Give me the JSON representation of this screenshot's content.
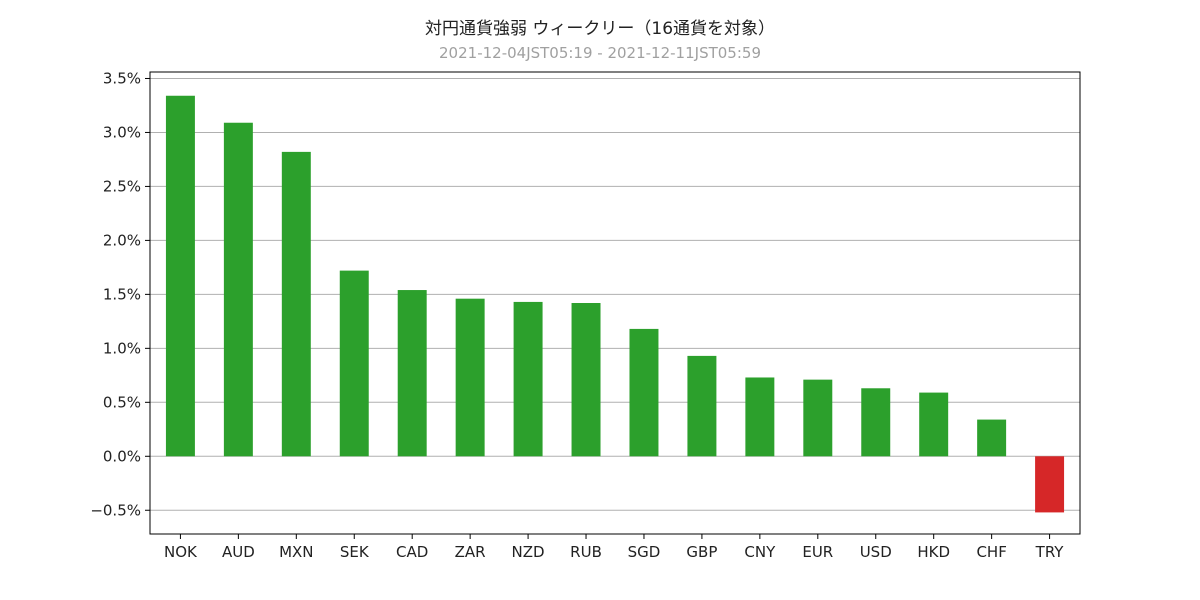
{
  "chart_data": {
    "type": "bar",
    "title": "対円通貨強弱 ウィークリー（16通貨を対象）",
    "subtitle": "2021-12-04JST05:19 - 2021-12-11JST05:59",
    "xlabel": "",
    "ylabel": "",
    "categories": [
      "NOK",
      "AUD",
      "MXN",
      "SEK",
      "CAD",
      "ZAR",
      "NZD",
      "RUB",
      "SGD",
      "GBP",
      "CNY",
      "EUR",
      "USD",
      "HKD",
      "CHF",
      "TRY"
    ],
    "values": [
      3.34,
      3.09,
      2.82,
      1.72,
      1.54,
      1.46,
      1.43,
      1.42,
      1.18,
      0.93,
      0.73,
      0.71,
      0.63,
      0.59,
      0.34,
      -0.52
    ],
    "ylim": [
      -0.72,
      3.56
    ],
    "yticks": [
      -0.5,
      0.0,
      0.5,
      1.0,
      1.5,
      2.0,
      2.5,
      3.0,
      3.5
    ],
    "ytick_labels": [
      "−0.5%",
      "0.0%",
      "0.5%",
      "1.0%",
      "1.5%",
      "2.0%",
      "2.5%",
      "3.0%",
      "3.5%"
    ],
    "grid": true,
    "colors": {
      "positive": "#2ca02c",
      "negative": "#d62728",
      "grid": "#b0b0b0",
      "axis": "#000000"
    }
  }
}
